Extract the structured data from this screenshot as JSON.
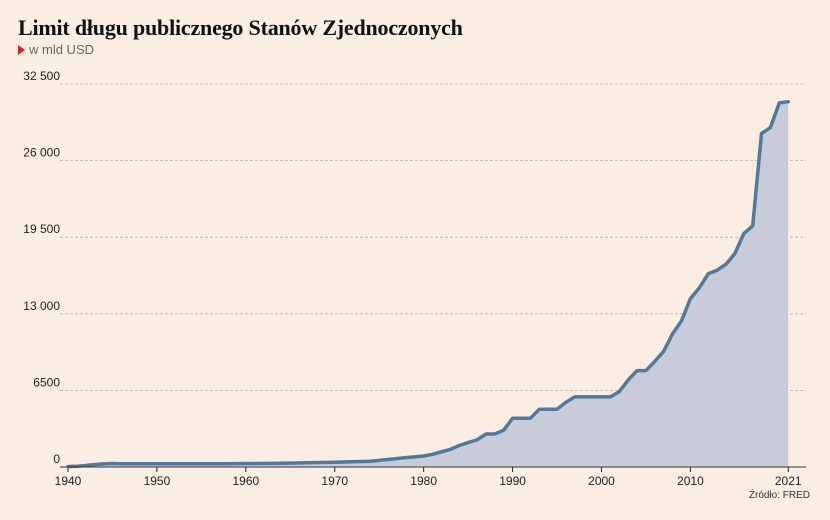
{
  "header": {
    "title": "Limit długu publicznego Stanów Zjednoczonych",
    "subtitle": "w mld USD"
  },
  "footer": {
    "source": "Źródło: FRED"
  },
  "colors": {
    "background": "#faeee2",
    "line": "#52799b",
    "area": "#c7ccd8",
    "grid": "#b8b0aa",
    "marker": "#d9261c"
  },
  "chart_data": {
    "type": "area",
    "title": "Limit długu publicznego Stanów Zjednoczonych",
    "subtitle": "w mld USD",
    "xlabel": "",
    "ylabel": "",
    "xlim": [
      1940,
      2023
    ],
    "ylim": [
      0,
      32500
    ],
    "grid": "horizontal dashed",
    "legend": "none",
    "y_ticks": [
      {
        "value": 0,
        "label": "0"
      },
      {
        "value": 6500,
        "label": "6500"
      },
      {
        "value": 13000,
        "label": "13 000"
      },
      {
        "value": 19500,
        "label": "19 500"
      },
      {
        "value": 26000,
        "label": "26 000"
      },
      {
        "value": 32500,
        "label": "32 500"
      }
    ],
    "x_ticks": [
      {
        "value": 1940,
        "label": "1940"
      },
      {
        "value": 1950,
        "label": "1950"
      },
      {
        "value": 1960,
        "label": "1960"
      },
      {
        "value": 1970,
        "label": "1970"
      },
      {
        "value": 1980,
        "label": "1980"
      },
      {
        "value": 1990,
        "label": "1990"
      },
      {
        "value": 2000,
        "label": "2000"
      },
      {
        "value": 2010,
        "label": "2010"
      },
      {
        "value": 2021,
        "label": "2021"
      }
    ],
    "series": [
      {
        "points": [
          [
            1940,
            45
          ],
          [
            1941,
            65
          ],
          [
            1942,
            125
          ],
          [
            1943,
            210
          ],
          [
            1944,
            260
          ],
          [
            1945,
            300
          ],
          [
            1946,
            275
          ],
          [
            1950,
            275
          ],
          [
            1955,
            281
          ],
          [
            1958,
            283
          ],
          [
            1960,
            293
          ],
          [
            1963,
            309
          ],
          [
            1965,
            328
          ],
          [
            1967,
            358
          ],
          [
            1970,
            395
          ],
          [
            1972,
            450
          ],
          [
            1974,
            495
          ],
          [
            1976,
            636
          ],
          [
            1978,
            798
          ],
          [
            1980,
            935
          ],
          [
            1981,
            1079
          ],
          [
            1982,
            1290
          ],
          [
            1983,
            1490
          ],
          [
            1984,
            1823
          ],
          [
            1985,
            2079
          ],
          [
            1986,
            2300
          ],
          [
            1987,
            2800
          ],
          [
            1988,
            2800
          ],
          [
            1989,
            3123
          ],
          [
            1990,
            4145
          ],
          [
            1991,
            4145
          ],
          [
            1992,
            4145
          ],
          [
            1993,
            4900
          ],
          [
            1994,
            4900
          ],
          [
            1995,
            4900
          ],
          [
            1996,
            5500
          ],
          [
            1997,
            5950
          ],
          [
            2000,
            5950
          ],
          [
            2001,
            5950
          ],
          [
            2002,
            6400
          ],
          [
            2003,
            7384
          ],
          [
            2004,
            8184
          ],
          [
            2005,
            8184
          ],
          [
            2006,
            8965
          ],
          [
            2007,
            9815
          ],
          [
            2008,
            11315
          ],
          [
            2009,
            12394
          ],
          [
            2010,
            14294
          ],
          [
            2011,
            15194
          ],
          [
            2012,
            16394
          ],
          [
            2013,
            16699
          ],
          [
            2014,
            17212
          ],
          [
            2015,
            18113
          ],
          [
            2016,
            19808
          ],
          [
            2017,
            20456
          ],
          [
            2018,
            28300
          ],
          [
            2019,
            28800
          ],
          [
            2020,
            30900
          ],
          [
            2021,
            31000
          ]
        ]
      }
    ]
  }
}
